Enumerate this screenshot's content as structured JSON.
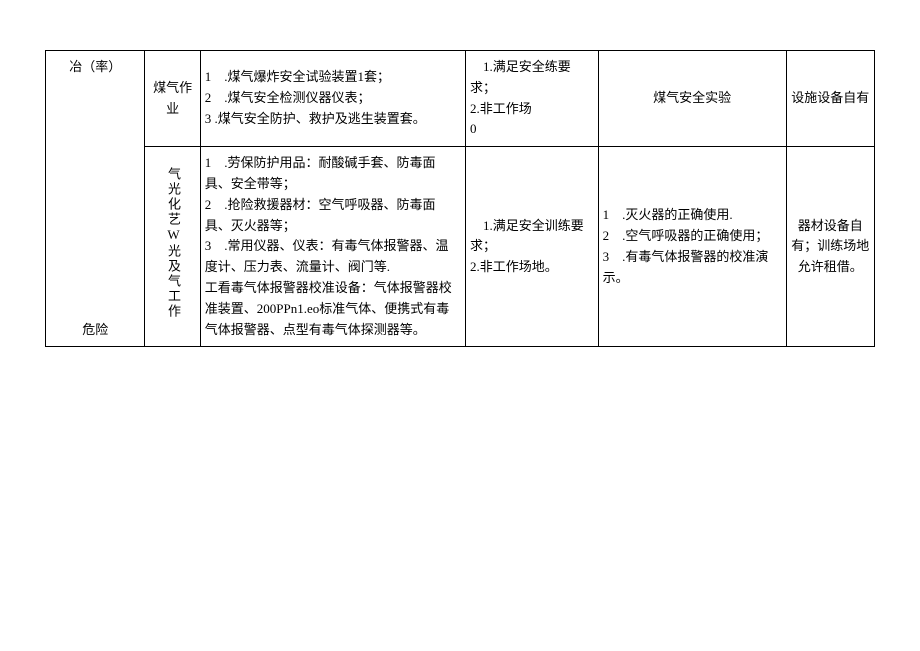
{
  "row1": {
    "col1": "冶（率）",
    "col2": "煤气作业",
    "col3": "1　.煤气爆炸安全试验装置1套；\n2　.煤气安全检测仪器仪表；\n3 .煤气安全防护、救护及逃生装置套。",
    "col4": "　1.满足安全练要求；\n 2.非工作场\n0",
    "col5": "煤气安全实验",
    "col6": "设施设备自有"
  },
  "row2": {
    "col1": "危险",
    "col2": "气光化艺W光及气工作",
    "col3": "1　.劳保防护用品：耐酸碱手套、防毒面具、安全带等；\n2　.抢险救援器材：空气呼吸器、防毒面具、灭火器等；\n3　.常用仪器、仪表：有毒气体报警器、温度计、压力表、流量计、阀门等.\n工看毒气体报警器校准设备：气体报警器校准装置、200PPn1.eo标准气体、便携式有毒气体报警器、点型有毒气体探测器等。",
    "col4": "　1.满足安全训练要求；\n2.非工作场地。",
    "col5": "1　.灭火器的正确使用.\n2　.空气呼吸器的正确使用；\n3　.有毒气体报警器的校准演示。",
    "col6": "器材设备自有；训练场地允许租借。"
  }
}
